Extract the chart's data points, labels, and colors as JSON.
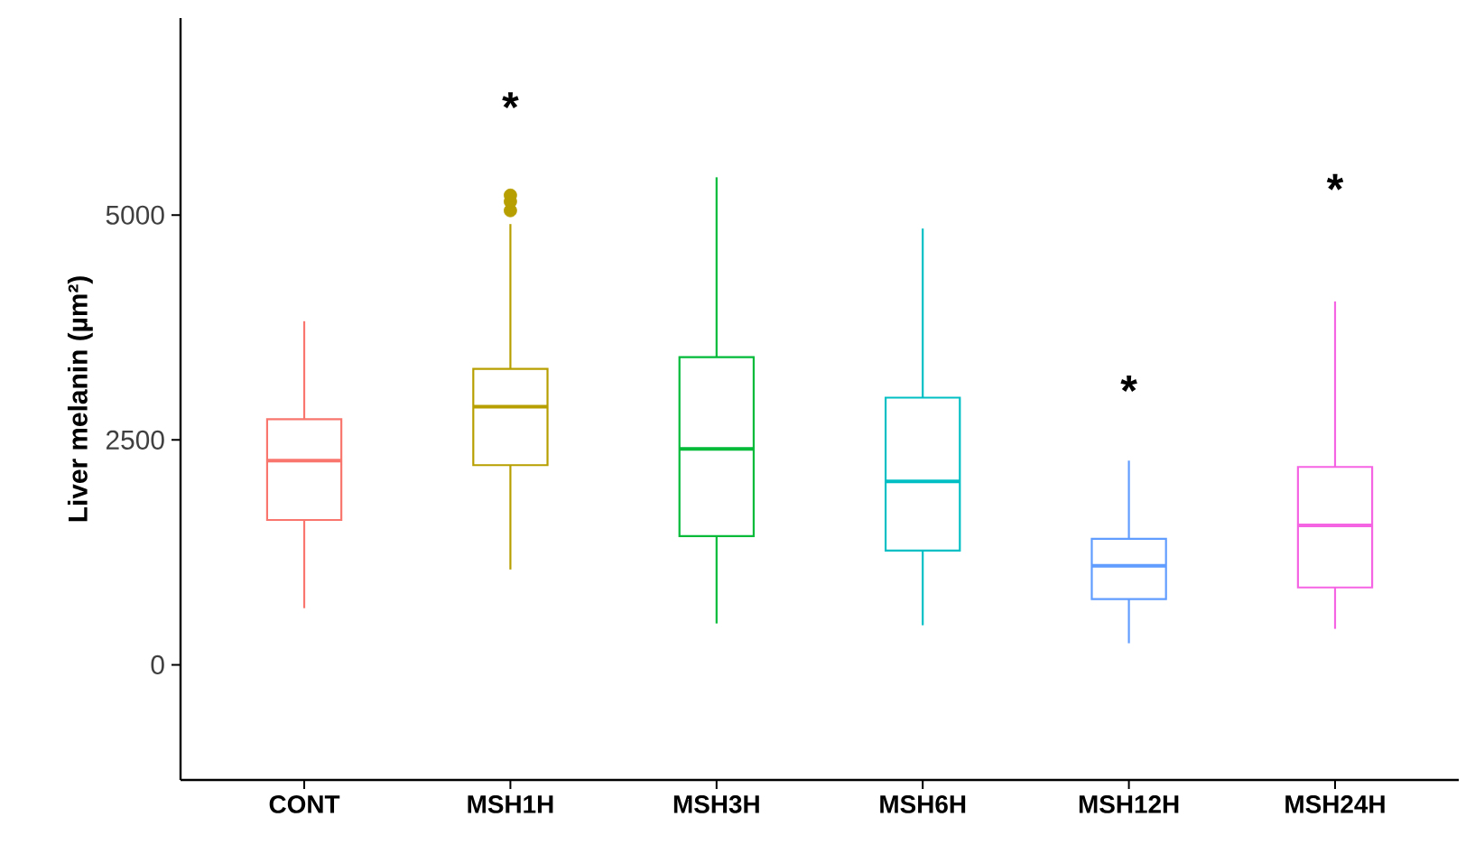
{
  "chart_data": {
    "type": "box",
    "ylabel": "Liver melanin (µm²)",
    "categories": [
      "CONT",
      "MSH1H",
      "MSH3H",
      "MSH6H",
      "MSH12H",
      "MSH24H"
    ],
    "colors": [
      "#f8766d",
      "#b79f00",
      "#00ba38",
      "#00bfc4",
      "#619cff",
      "#f564e3"
    ],
    "boxes": [
      {
        "low": 630,
        "q1": 1610,
        "median": 2270,
        "q3": 2730,
        "high": 3820
      },
      {
        "low": 1060,
        "q1": 2220,
        "median": 2870,
        "q3": 3290,
        "high": 4900,
        "outliers": [
          5050,
          5150,
          5220
        ]
      },
      {
        "low": 460,
        "q1": 1430,
        "median": 2400,
        "q3": 3420,
        "high": 5420
      },
      {
        "low": 440,
        "q1": 1270,
        "median": 2040,
        "q3": 2970,
        "high": 4850
      },
      {
        "low": 240,
        "q1": 730,
        "median": 1100,
        "q3": 1400,
        "high": 2270
      },
      {
        "low": 400,
        "q1": 860,
        "median": 1550,
        "q3": 2200,
        "high": 4040
      }
    ],
    "annotations": [
      "*",
      "*",
      "*"
    ],
    "ylim": [
      -1280,
      7190
    ],
    "yticks": [
      0,
      2500,
      5000
    ],
    "grid": false
  }
}
